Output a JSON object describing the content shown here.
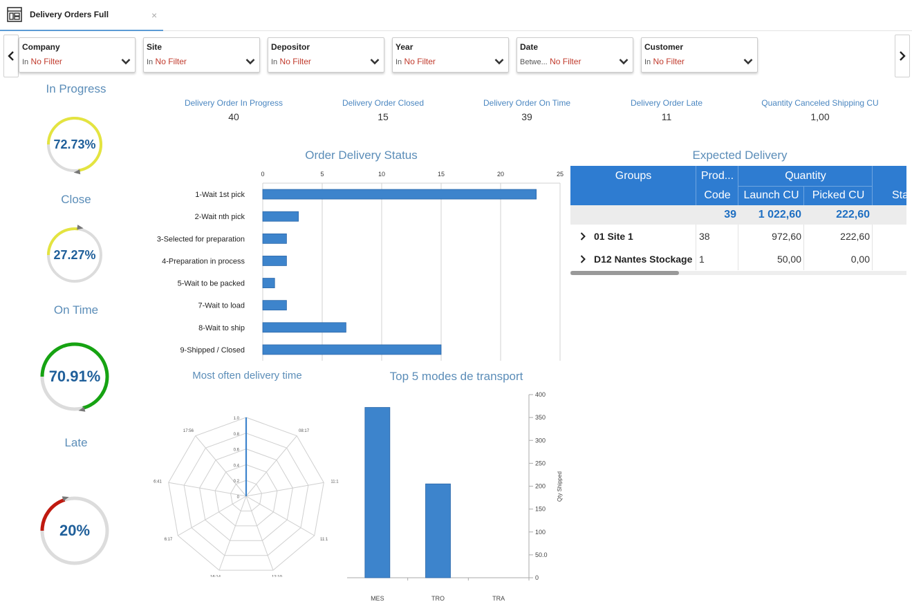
{
  "tab": {
    "title": "Delivery Orders Full",
    "close": "×"
  },
  "nav": {
    "prev": "‹",
    "next": "›"
  },
  "filters": [
    {
      "label": "Company",
      "op": "In",
      "value": "No Filter"
    },
    {
      "label": "Site",
      "op": "In",
      "value": "No Filter"
    },
    {
      "label": "Depositor",
      "op": "In",
      "value": "No Filter"
    },
    {
      "label": "Year",
      "op": "In",
      "value": "No Filter"
    },
    {
      "label": "Date",
      "op": "Betwe...",
      "value": "No Filter"
    },
    {
      "label": "Customer",
      "op": "In",
      "value": "No Filter"
    }
  ],
  "gauges": [
    {
      "title": "In Progress",
      "value": "72.73%",
      "fraction": 0.7273,
      "color": "#e4e440"
    },
    {
      "title": "Close",
      "value": "27.27%",
      "fraction": 0.2727,
      "color": "#e4e440"
    },
    {
      "title": "On Time",
      "value": "70.91%",
      "fraction": 0.7091,
      "color": "#16a312"
    },
    {
      "title": "Late",
      "value": "20%",
      "fraction": 0.2,
      "color": "#c0190f"
    }
  ],
  "kpis": [
    {
      "label": "Delivery Order In Progress",
      "value": "40"
    },
    {
      "label": "Delivery Order Closed",
      "value": "15"
    },
    {
      "label": "Delivery Order On Time",
      "value": "39"
    },
    {
      "label": "Delivery Order Late",
      "value": "11"
    },
    {
      "label": "Quantity Canceled Shipping CU",
      "value": "1,00"
    }
  ],
  "order_status_title": "Order Delivery Status",
  "expected_title": "Expected Delivery",
  "radar_title": "Most often delivery time",
  "transport_title": "Top 5 modes de transport",
  "chart_data": [
    {
      "type": "bar",
      "orientation": "horizontal",
      "title": "Order Delivery Status",
      "categories": [
        "1-Wait 1st pick",
        "2-Wait nth pick",
        "3-Selected for preparation",
        "4-Preparation in process",
        "5-Wait to be packed",
        "7-Wait to load",
        "8-Wait to ship",
        "9-Shipped / Closed"
      ],
      "values": [
        23,
        3,
        2,
        2,
        1,
        2,
        7,
        15
      ],
      "xlim": [
        0,
        25
      ],
      "ticks": [
        "0",
        "5",
        "10",
        "15",
        "20",
        "25"
      ],
      "tick_values": [
        0,
        5,
        10,
        15,
        20,
        25
      ],
      "color": "#3d84cc",
      "grid": true
    },
    {
      "type": "radar",
      "title": "Most often delivery time",
      "axes": [
        "1.0",
        "08:17",
        "11:1",
        "11:1",
        "12:10",
        "16:14",
        "6:17",
        "6:41",
        "17:56"
      ],
      "axis_labels": [
        "08:17",
        "11:1",
        "11:1",
        "12:10",
        "16:14",
        "6:17",
        "6:41",
        "17:56"
      ],
      "radial_ticks": [
        "1.0",
        "0.8",
        "0.6",
        "0.4",
        "0.2",
        "0"
      ],
      "radial_values": [
        1.0,
        0.8,
        0.6,
        0.4,
        0.2,
        0
      ],
      "series_values": [
        1.0,
        0,
        0,
        0,
        0,
        0,
        0,
        0,
        0
      ],
      "color": "#3d84cc"
    },
    {
      "type": "bar",
      "title": "Top 5 modes de transport",
      "categories": [
        "MES",
        "TRO",
        "TRA"
      ],
      "values": [
        372,
        205,
        0
      ],
      "ylim": [
        0,
        400
      ],
      "ticks": [
        "0",
        "50.0",
        "100",
        "150",
        "200",
        "250",
        "300",
        "350",
        "400"
      ],
      "tick_values": [
        0,
        50,
        100,
        150,
        200,
        250,
        300,
        350,
        400
      ],
      "ylabel": "Qty Shipped",
      "color": "#3d84cc"
    }
  ],
  "expected_table": {
    "headers": {
      "groups": "Groups",
      "prod": "Prod...",
      "code": "Code",
      "quantity": "Quantity",
      "launch": "Launch CU",
      "picked": "Picked CU",
      "sta": "Sta"
    },
    "total": {
      "code": "39",
      "launch": "1 022,60",
      "picked": "222,60"
    },
    "rows": [
      {
        "expander": "›",
        "group": "01 Site 1",
        "code": "38",
        "launch": "972,60",
        "picked": "222,60"
      },
      {
        "expander": "›",
        "group": "D12 Nantes Stockage",
        "code": "1",
        "launch": "50,00",
        "picked": "0,00"
      }
    ]
  }
}
